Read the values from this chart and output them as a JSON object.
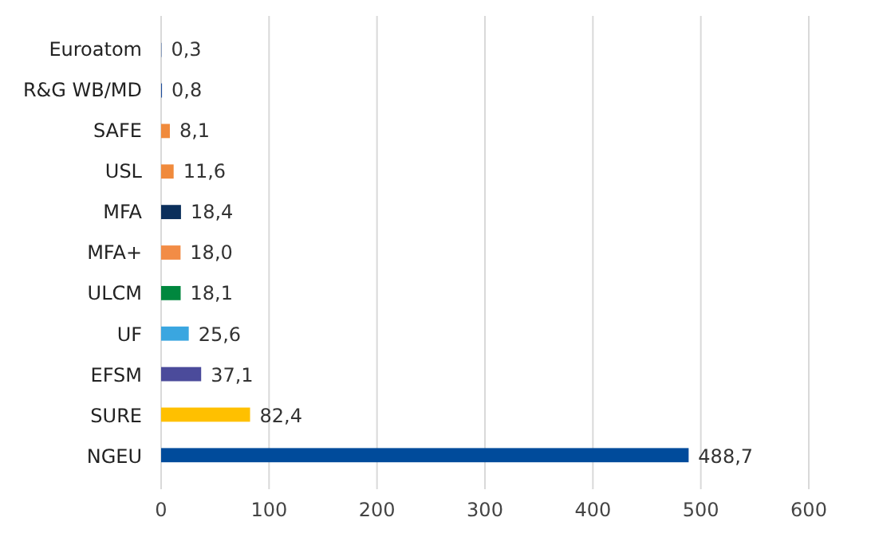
{
  "chart_data": {
    "type": "bar",
    "orientation": "horizontal",
    "categories": [
      "Euroatom",
      "R&G WB/MD",
      "SAFE",
      "USL",
      "MFA",
      "MFA+",
      "ULCM",
      "UF",
      "EFSM",
      "SURE",
      "NGEU"
    ],
    "values": [
      0.3,
      0.8,
      8.1,
      11.6,
      18.4,
      18.0,
      18.1,
      25.6,
      37.1,
      82.4,
      488.7
    ],
    "colors": [
      "#1f4e9b",
      "#1f4e9b",
      "#f08a3c",
      "#f08a3c",
      "#0b2f5b",
      "#f28c46",
      "#00873e",
      "#3aa6e0",
      "#4b4b9b",
      "#ffc000",
      "#004b9b"
    ],
    "value_labels": [
      "0,3",
      "0,8",
      "8,1",
      "11,6",
      "18,4",
      "18,0",
      "18,1",
      "25,6",
      "37,1",
      "82,4",
      "488,7"
    ],
    "xlim": [
      0,
      600
    ],
    "xticks": [
      0,
      100,
      200,
      300,
      400,
      500,
      600
    ],
    "grid": "x"
  }
}
